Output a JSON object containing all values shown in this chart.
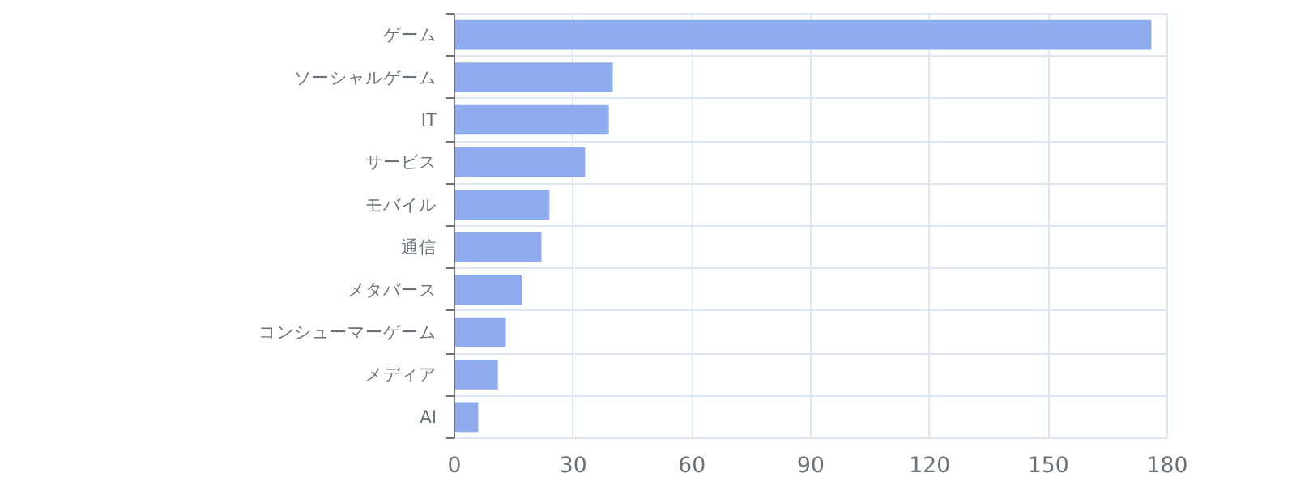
{
  "chart_data": {
    "type": "bar",
    "orientation": "horizontal",
    "categories": [
      "ゲーム",
      "ソーシャルゲーム",
      "IT",
      "サービス",
      "モバイル",
      "通信",
      "メタバース",
      "コンシューマーゲーム",
      "メディア",
      "AI"
    ],
    "values": [
      176,
      40,
      39,
      33,
      24,
      22,
      17,
      13,
      11,
      6
    ],
    "color": "#8eacee",
    "xlim": [
      0,
      180
    ],
    "xticks": [
      0,
      30,
      60,
      90,
      120,
      150,
      180
    ],
    "grid": true
  }
}
